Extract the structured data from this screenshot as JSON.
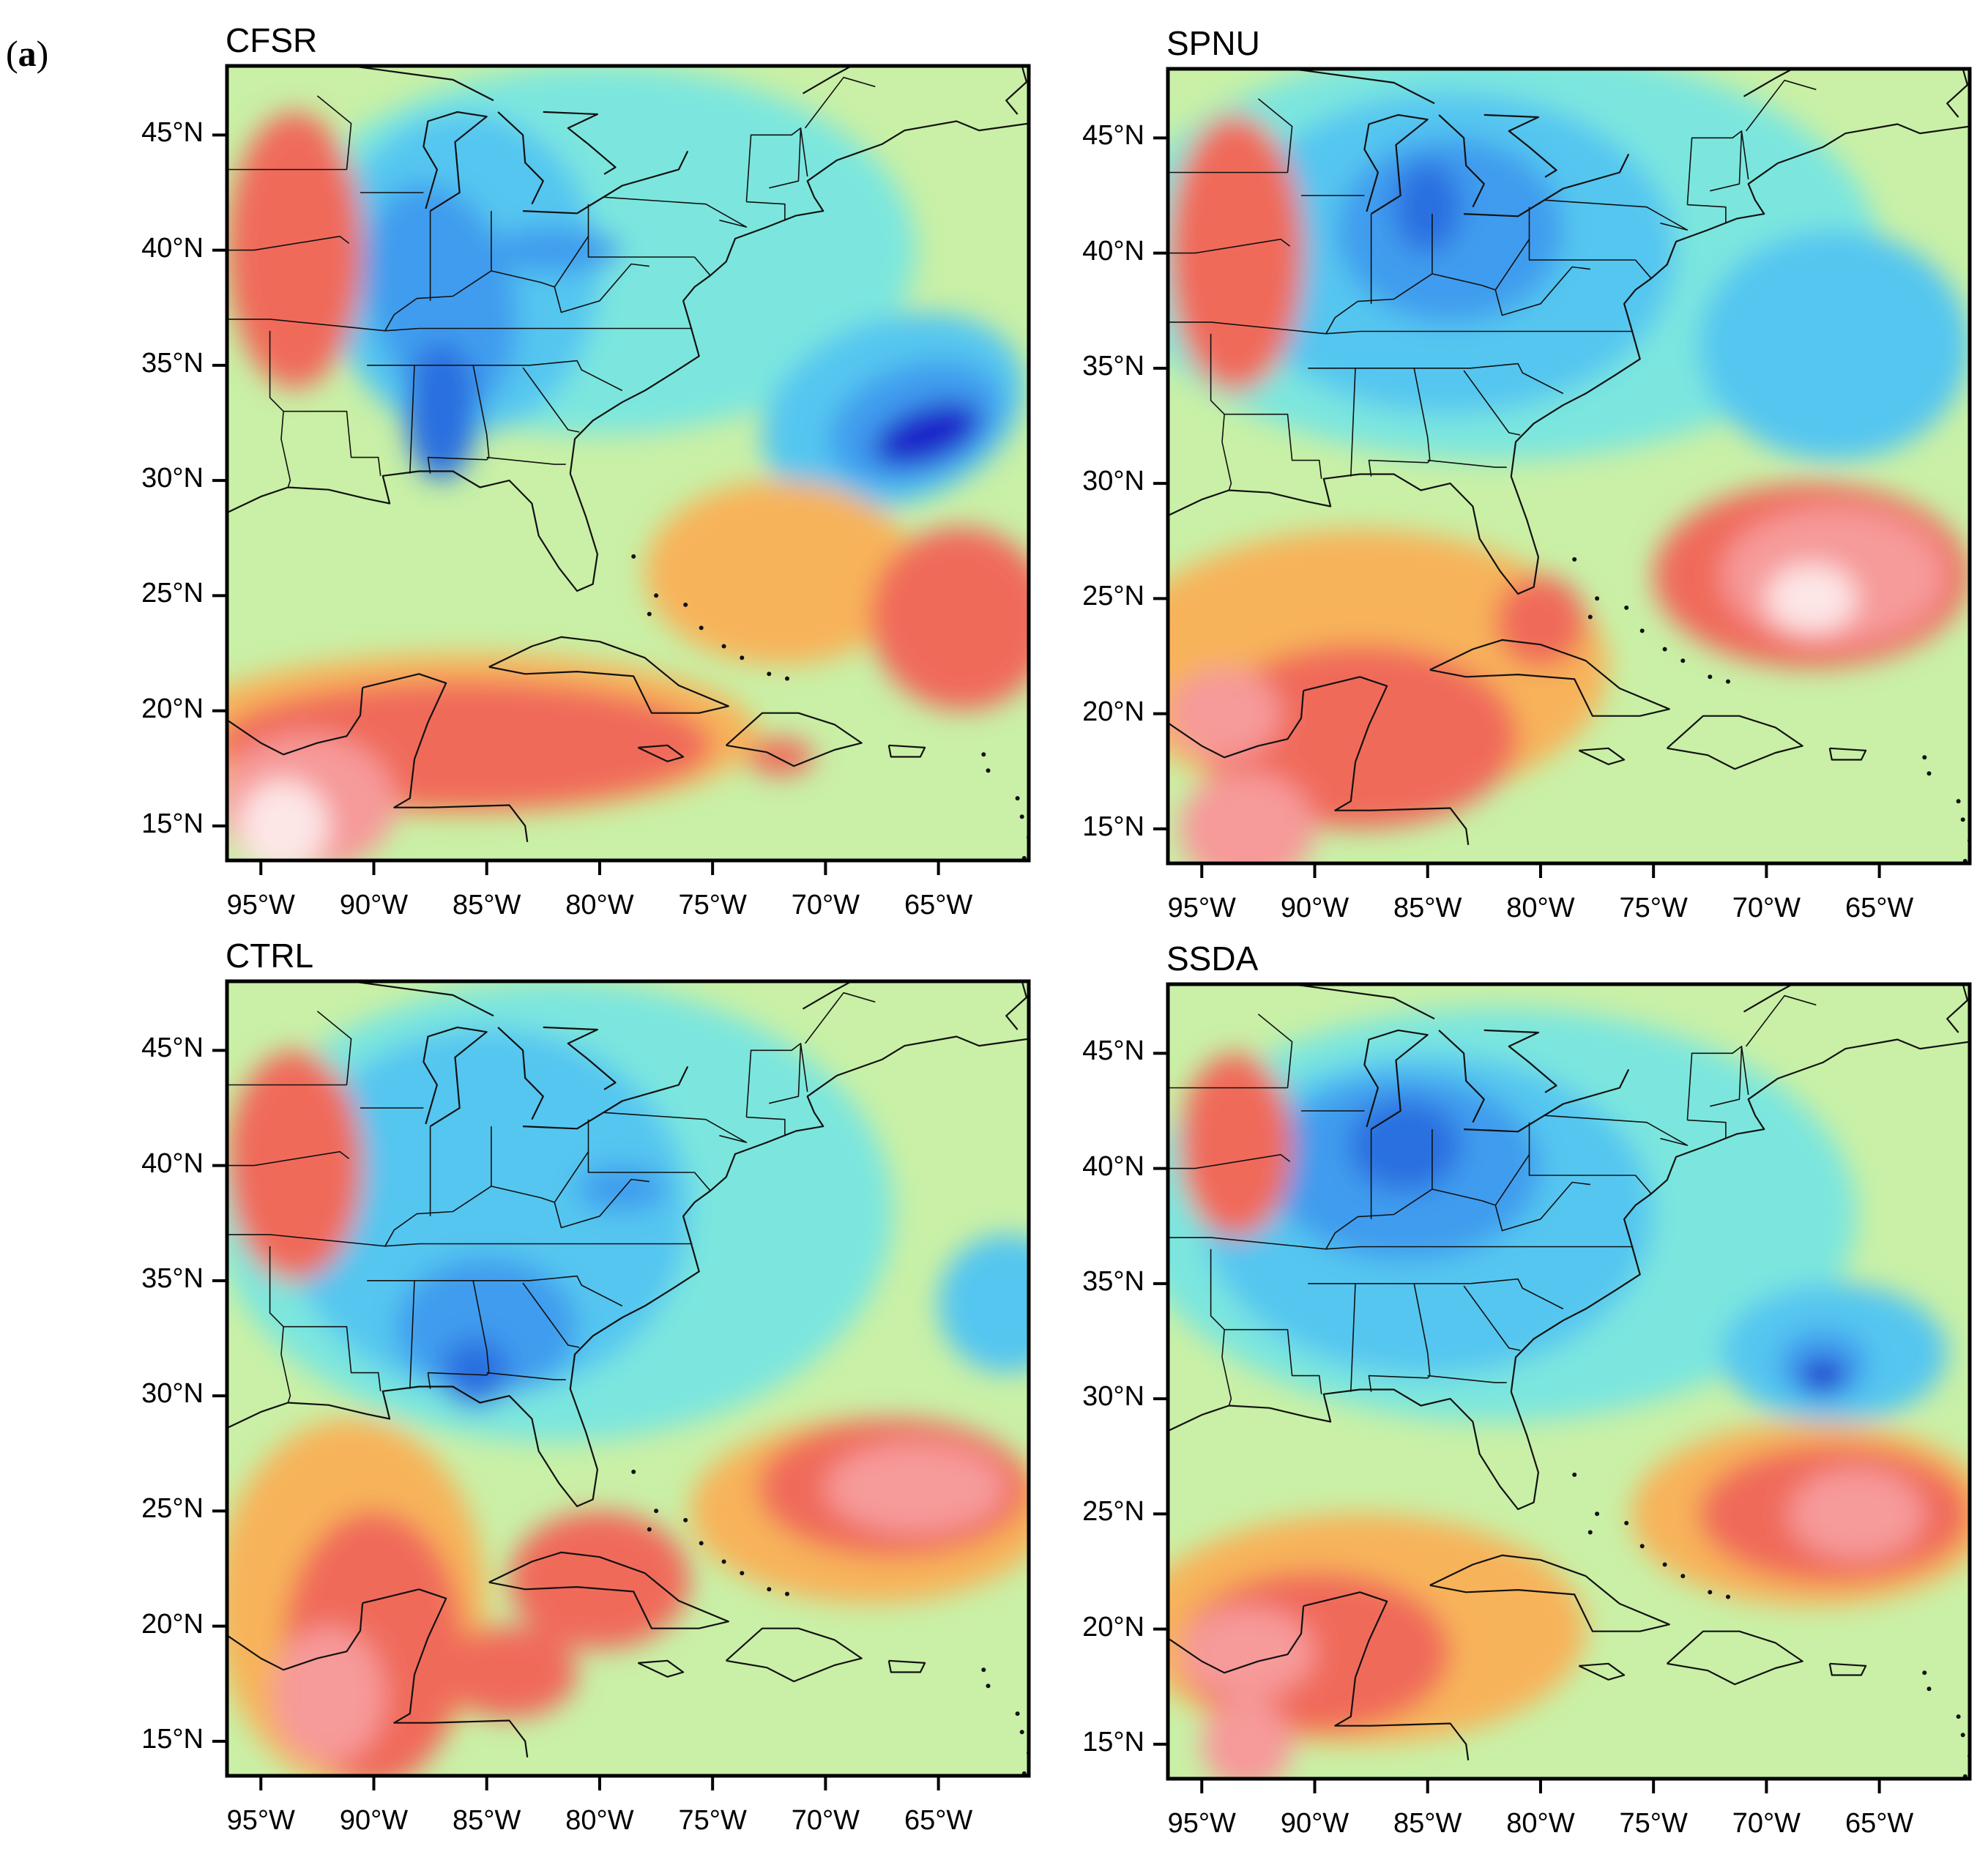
{
  "figure": {
    "label_open": "(",
    "label_letter": "a",
    "label_close": ")"
  },
  "panels": [
    {
      "id": "cfsr",
      "title": "CFSR"
    },
    {
      "id": "spnu",
      "title": "SPNU"
    },
    {
      "id": "ctrl",
      "title": "CTRL"
    },
    {
      "id": "ssda",
      "title": "SSDA"
    }
  ],
  "axes": {
    "lat_ticks": [
      "45°N",
      "40°N",
      "35°N",
      "30°N",
      "25°N",
      "20°N",
      "15°N"
    ],
    "lon_ticks": [
      "95°W",
      "90°W",
      "85°W",
      "80°W",
      "75°W",
      "70°W",
      "65°W"
    ],
    "lat_range": [
      13.5,
      48
    ],
    "lon_range": [
      -96.5,
      -61
    ]
  },
  "colors": {
    "background_field": "#c9f0a6",
    "palette": [
      "#1a24c9",
      "#2a6fe0",
      "#3f9cee",
      "#54c6f0",
      "#7ce6de",
      "#c9f0a6",
      "#f2e690",
      "#f7b35a",
      "#f06a5a",
      "#f69a9a",
      "#fde6e6"
    ]
  }
}
